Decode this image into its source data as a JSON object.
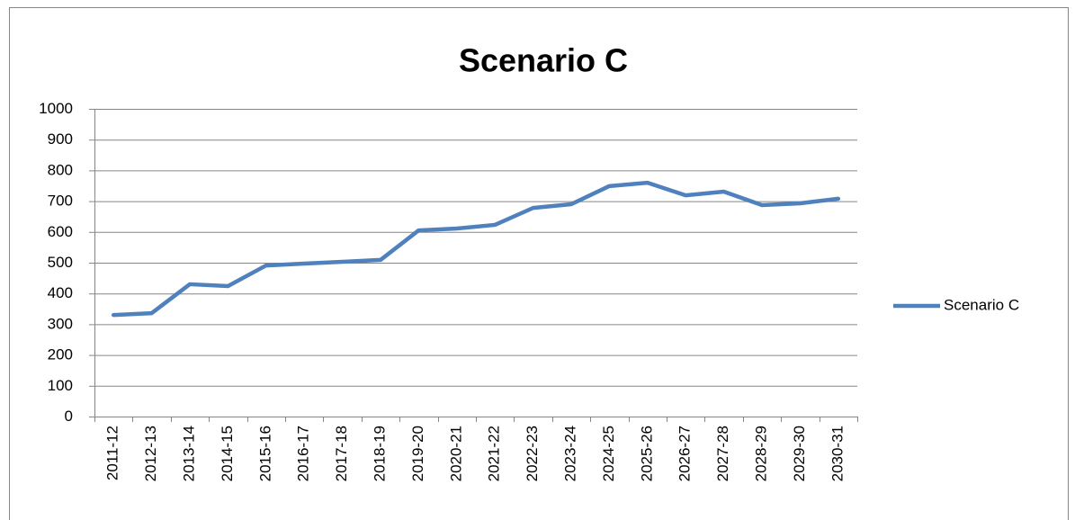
{
  "chart_data": {
    "type": "line",
    "title": "Scenario C",
    "categories": [
      "2011-12",
      "2012-13",
      "2013-14",
      "2014-15",
      "2015-16",
      "2016-17",
      "2017-18",
      "2018-19",
      "2019-20",
      "2020-21",
      "2021-22",
      "2022-23",
      "2023-24",
      "2024-25",
      "2025-26",
      "2026-27",
      "2027-28",
      "2028-29",
      "2029-30",
      "2030-31"
    ],
    "series": [
      {
        "name": "Scenario C",
        "color": "#4f81bd",
        "values": [
          330,
          336,
          430,
          424,
          491,
          497,
          503,
          509,
          605,
          611,
          623,
          678,
          690,
          749,
          760,
          719,
          731,
          687,
          693,
          708
        ]
      }
    ],
    "ylim": [
      0,
      1000
    ],
    "yticks": [
      0,
      100,
      200,
      300,
      400,
      500,
      600,
      700,
      800,
      900,
      1000
    ],
    "grid": true,
    "legend": "right"
  }
}
